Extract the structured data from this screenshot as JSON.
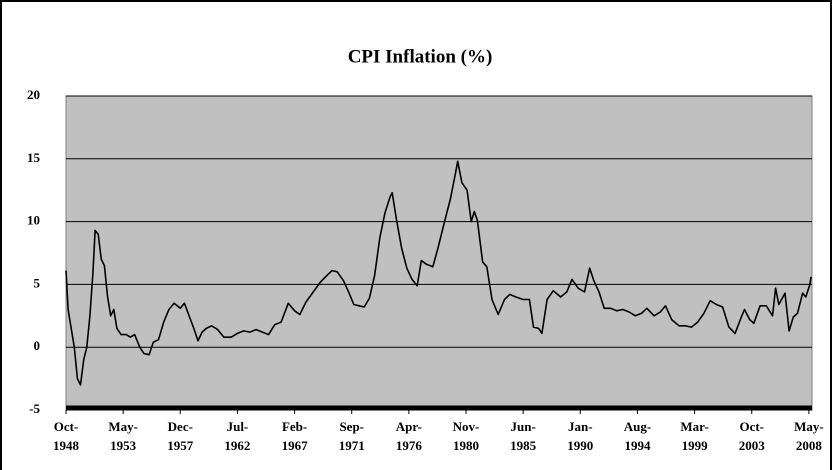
{
  "chart_data": {
    "type": "line",
    "title": "CPI Inflation (%)",
    "color": "#000000",
    "grid": true,
    "x": [
      "1948-10",
      "1948-12",
      "1949-03",
      "1949-06",
      "1949-09",
      "1949-12",
      "1950-03",
      "1950-06",
      "1950-09",
      "1950-12",
      "1951-02",
      "1951-05",
      "1951-08",
      "1951-11",
      "1952-02",
      "1952-05",
      "1952-08",
      "1952-11",
      "1953-03",
      "1953-08",
      "1953-12",
      "1954-04",
      "1954-09",
      "1955-01",
      "1955-06",
      "1955-10",
      "1956-03",
      "1956-08",
      "1957-01",
      "1957-06",
      "1957-12",
      "1958-04",
      "1958-09",
      "1959-01",
      "1959-05",
      "1959-09",
      "1960-01",
      "1960-06",
      "1960-12",
      "1961-06",
      "1962-01",
      "1962-07",
      "1963-01",
      "1963-07",
      "1964-01",
      "1964-07",
      "1965-01",
      "1965-07",
      "1966-01",
      "1966-08",
      "1967-02",
      "1967-07",
      "1968-01",
      "1968-08",
      "1969-03",
      "1969-09",
      "1970-02",
      "1970-07",
      "1971-01",
      "1971-06",
      "1971-11",
      "1972-04",
      "1972-09",
      "1973-02",
      "1973-07",
      "1973-12",
      "1974-05",
      "1974-10",
      "1974-12",
      "1975-04",
      "1975-09",
      "1976-02",
      "1976-07",
      "1976-12",
      "1977-04",
      "1977-09",
      "1978-03",
      "1978-08",
      "1979-02",
      "1979-08",
      "1980-01",
      "1980-03",
      "1980-07",
      "1980-12",
      "1981-04",
      "1981-07",
      "1981-10",
      "1982-03",
      "1982-07",
      "1982-12",
      "1983-06",
      "1983-12",
      "1984-05",
      "1984-11",
      "1985-06",
      "1985-12",
      "1986-04",
      "1986-09",
      "1986-12",
      "1987-05",
      "1987-11",
      "1988-06",
      "1988-12",
      "1989-05",
      "1989-11",
      "1990-05",
      "1990-10",
      "1991-02",
      "1991-07",
      "1991-12",
      "1992-06",
      "1992-12",
      "1993-06",
      "1993-12",
      "1994-06",
      "1994-12",
      "1995-05",
      "1995-12",
      "1996-06",
      "1996-11",
      "1997-05",
      "1997-12",
      "1998-06",
      "1998-12",
      "1999-06",
      "1999-12",
      "2000-06",
      "2000-12",
      "2001-06",
      "2001-12",
      "2002-06",
      "2002-12",
      "2003-03",
      "2003-08",
      "2003-12",
      "2004-06",
      "2004-12",
      "2005-06",
      "2005-09",
      "2005-12",
      "2006-06",
      "2006-10",
      "2007-02",
      "2007-06",
      "2007-11",
      "2008-02",
      "2008-06",
      "2008-07"
    ],
    "values": [
      6.1,
      3,
      1.5,
      0,
      -2.5,
      -3,
      -1,
      0,
      2.5,
      6,
      9.3,
      9,
      7,
      6.5,
      4,
      2.5,
      3,
      1.5,
      1,
      1,
      0.8,
      1,
      0,
      -0.5,
      -0.6,
      0.4,
      0.6,
      2,
      3,
      3.5,
      3.1,
      3.5,
      2.4,
      1.5,
      0.5,
      1.2,
      1.5,
      1.7,
      1.4,
      0.8,
      0.8,
      1.1,
      1.3,
      1.2,
      1.4,
      1.2,
      1.0,
      1.8,
      2.0,
      3.5,
      2.9,
      2.6,
      3.6,
      4.4,
      5.2,
      5.7,
      6.1,
      6.0,
      5.3,
      4.4,
      3.4,
      3.3,
      3.2,
      3.9,
      5.7,
      8.7,
      10.7,
      12.0,
      12.3,
      10.2,
      7.9,
      6.3,
      5.4,
      4.9,
      6.9,
      6.6,
      6.4,
      7.9,
      9.9,
      11.8,
      13.9,
      14.8,
      13.1,
      12.5,
      10.0,
      10.8,
      10.1,
      6.8,
      6.4,
      3.8,
      2.6,
      3.8,
      4.2,
      4.0,
      3.8,
      3.8,
      1.6,
      1.5,
      1.1,
      3.8,
      4.5,
      4.0,
      4.4,
      5.4,
      4.7,
      4.4,
      6.3,
      5.3,
      4.4,
      3.1,
      3.1,
      2.9,
      3.0,
      2.8,
      2.5,
      2.7,
      3.1,
      2.5,
      2.8,
      3.3,
      2.2,
      1.7,
      1.7,
      1.6,
      2.0,
      2.7,
      3.7,
      3.4,
      3.2,
      1.6,
      1.1,
      2.4,
      3.0,
      2.2,
      1.9,
      3.3,
      3.3,
      2.5,
      4.7,
      3.4,
      4.3,
      1.3,
      2.4,
      2.7,
      4.3,
      4.0,
      5.0,
      5.6
    ],
    "xlim": [
      "1948-10",
      "2008-08"
    ],
    "xticks": [
      {
        "value": "1948-10",
        "label": [
          "Oct-",
          "1948"
        ]
      },
      {
        "value": "1953-05",
        "label": [
          "May-",
          "1953"
        ]
      },
      {
        "value": "1957-12",
        "label": [
          "Dec-",
          "1957"
        ]
      },
      {
        "value": "1962-07",
        "label": [
          "Jul-",
          "1962"
        ]
      },
      {
        "value": "1967-02",
        "label": [
          "Feb-",
          "1967"
        ]
      },
      {
        "value": "1971-09",
        "label": [
          "Sep-",
          "1971"
        ]
      },
      {
        "value": "1976-04",
        "label": [
          "Apr-",
          "1976"
        ]
      },
      {
        "value": "1980-11",
        "label": [
          "Nov-",
          "1980"
        ]
      },
      {
        "value": "1985-06",
        "label": [
          "Jun-",
          "1985"
        ]
      },
      {
        "value": "1990-01",
        "label": [
          "Jan-",
          "1990"
        ]
      },
      {
        "value": "1994-08",
        "label": [
          "Aug-",
          "1994"
        ]
      },
      {
        "value": "1999-03",
        "label": [
          "Mar-",
          "1999"
        ]
      },
      {
        "value": "2003-10",
        "label": [
          "Oct-",
          "2003"
        ]
      },
      {
        "value": "2008-05",
        "label": [
          "May-",
          "2008"
        ]
      }
    ],
    "ylim": [
      -5,
      20
    ],
    "yticks": [
      -5,
      0,
      5,
      10,
      15,
      20
    ]
  }
}
